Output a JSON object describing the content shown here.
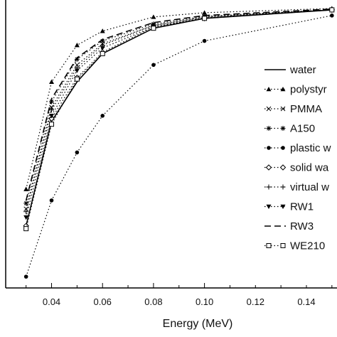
{
  "chart_data": {
    "type": "line",
    "xlabel": "Energy (MeV)",
    "ylabel": "",
    "xlim": [
      0.022,
      0.152
    ],
    "ylim": [
      0.0,
      1.02
    ],
    "xticks": [
      0.04,
      0.06,
      0.08,
      0.1,
      0.12,
      0.14
    ],
    "xtick_labels": [
      "0.04",
      "0.06",
      "0.08",
      "0.10",
      "0.12",
      "0.14"
    ],
    "grid": false,
    "legend_position": "right",
    "x": [
      0.03,
      0.04,
      0.05,
      0.06,
      0.08,
      0.1,
      0.15
    ],
    "series": [
      {
        "name": "water",
        "values": [
          0.22,
          0.59,
          0.73,
          0.83,
          0.92,
          0.955,
          0.985
        ],
        "color": "#000000"
      },
      {
        "name": "polystyrene",
        "values": [
          0.35,
          0.73,
          0.86,
          0.91,
          0.96,
          0.975,
          0.99
        ],
        "color": "#000000"
      },
      {
        "name": "PMMA",
        "values": [
          0.28,
          0.64,
          0.79,
          0.865,
          0.93,
          0.96,
          0.985
        ],
        "color": "#000000"
      },
      {
        "name": "A150",
        "values": [
          0.3,
          0.66,
          0.81,
          0.875,
          0.935,
          0.962,
          0.986
        ],
        "color": "#000000"
      },
      {
        "name": "plastic water",
        "values": [
          0.04,
          0.31,
          0.48,
          0.61,
          0.79,
          0.875,
          0.965
        ],
        "color": "#000000"
      },
      {
        "name": "solid water",
        "values": [
          0.22,
          0.6,
          0.745,
          0.835,
          0.925,
          0.955,
          0.985
        ],
        "color": "#000000"
      },
      {
        "name": "virtual water",
        "values": [
          0.27,
          0.63,
          0.78,
          0.86,
          0.93,
          0.958,
          0.986
        ],
        "color": "#000000"
      },
      {
        "name": "RW1",
        "values": [
          0.25,
          0.61,
          0.77,
          0.85,
          0.925,
          0.955,
          0.985
        ],
        "color": "#000000"
      },
      {
        "name": "RW3",
        "values": [
          0.31,
          0.67,
          0.815,
          0.88,
          0.94,
          0.965,
          0.988
        ],
        "color": "#000000"
      },
      {
        "name": "WE210",
        "values": [
          0.21,
          0.58,
          0.74,
          0.83,
          0.92,
          0.955,
          0.985
        ],
        "color": "#000000"
      }
    ],
    "legend_labels": [
      "water",
      "polystyr",
      "PMMA",
      "A150",
      "plastic w",
      "solid wa",
      "virtual w",
      "RW1",
      "RW3",
      "WE210"
    ]
  }
}
